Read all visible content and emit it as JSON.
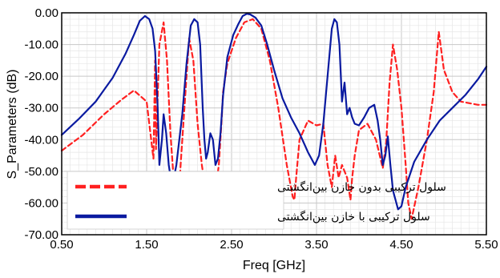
{
  "chart_data": {
    "type": "line",
    "xlabel": "Freq [GHz]",
    "ylabel": "S_Parameters (dB)",
    "xlim": [
      0.5,
      5.5
    ],
    "ylim": [
      -70,
      0
    ],
    "grid": true,
    "legend_placement": "bottom-left",
    "x_ticks": [
      "0.50",
      "1.50",
      "2.50",
      "3.50",
      "4.50",
      "5.50"
    ],
    "y_ticks": [
      "0.00",
      "-10.00",
      "-20.00",
      "-30.00",
      "-40.00",
      "-50.00",
      "-60.00",
      "-70.00"
    ],
    "series": [
      {
        "name": "سلول ترکیبی بدون خازن بین‌انگشتی",
        "color": "#ff2020",
        "style": "dashed",
        "x": [
          0.5,
          0.75,
          1.0,
          1.2,
          1.35,
          1.5,
          1.58,
          1.6,
          1.61,
          1.65,
          1.7,
          1.74,
          1.78,
          1.82,
          1.86,
          1.88,
          1.9,
          1.95,
          2.0,
          2.05,
          2.1,
          2.15,
          2.2,
          2.25,
          2.3,
          2.35,
          2.38,
          2.4,
          2.45,
          2.55,
          2.65,
          2.75,
          2.85,
          2.95,
          3.05,
          3.15,
          3.22,
          3.24,
          3.26,
          3.3,
          3.4,
          3.5,
          3.58,
          3.63,
          3.68,
          3.72,
          3.76,
          3.8,
          3.86,
          3.9,
          3.92,
          3.95,
          4.0,
          4.1,
          4.2,
          4.28,
          4.32,
          4.36,
          4.4,
          4.45,
          4.5,
          4.55,
          4.58,
          4.62,
          4.7,
          4.8,
          4.88,
          4.94,
          5.0,
          5.1,
          5.2,
          5.3,
          5.4,
          5.5
        ],
        "y": [
          -43.5,
          -38.5,
          -32.0,
          -27.5,
          -24.5,
          -28.0,
          -46.0,
          -15.0,
          -43.0,
          -10.0,
          -3.0,
          -15.0,
          -38.0,
          -53.0,
          -58.0,
          -58.0,
          -48.0,
          -28.0,
          -8.0,
          -15.0,
          -35.0,
          -48.0,
          -57.0,
          -60.0,
          -58.5,
          -48.0,
          -35.0,
          -25.0,
          -16.0,
          -8.0,
          -3.0,
          -2.0,
          -5.0,
          -15.0,
          -30.0,
          -48.0,
          -58.0,
          -59.0,
          -52.0,
          -40.0,
          -34.0,
          -35.5,
          -35.0,
          -48.0,
          -55.0,
          -45.0,
          -52.0,
          -48.0,
          -52.0,
          -59.0,
          -52.0,
          -45.0,
          -37.0,
          -35.0,
          -40.0,
          -49.0,
          -41.0,
          -22.0,
          -10.0,
          -18.0,
          -30.0,
          -48.0,
          -60.0,
          -65.0,
          -55.0,
          -40.0,
          -25.0,
          -6.0,
          -18.0,
          -25.0,
          -28.0,
          -28.5,
          -29.0,
          -29.0
        ]
      },
      {
        "name": "سلول ترکیبی با خازن بین‌انگشتی",
        "color": "#0a1aa0",
        "style": "solid",
        "x": [
          0.5,
          0.7,
          0.9,
          1.1,
          1.25,
          1.35,
          1.42,
          1.48,
          1.53,
          1.57,
          1.6,
          1.63,
          1.65,
          1.68,
          1.7,
          1.73,
          1.76,
          1.8,
          1.85,
          1.92,
          1.97,
          2.02,
          2.06,
          2.1,
          2.13,
          2.16,
          2.18,
          2.2,
          2.22,
          2.25,
          2.28,
          2.31,
          2.34,
          2.37,
          2.4,
          2.45,
          2.52,
          2.58,
          2.63,
          2.68,
          2.72,
          2.78,
          2.85,
          2.92,
          3.0,
          3.1,
          3.2,
          3.3,
          3.4,
          3.48,
          3.53,
          3.58,
          3.63,
          3.68,
          3.71,
          3.74,
          3.77,
          3.8,
          3.83,
          3.86,
          3.89,
          3.92,
          3.95,
          4.0,
          4.06,
          4.12,
          4.18,
          4.22,
          4.25,
          4.28,
          4.31,
          4.34,
          4.37,
          4.4,
          4.43,
          4.46,
          4.5,
          4.55,
          4.65,
          4.8,
          4.95,
          5.1,
          5.25,
          5.4,
          5.5
        ],
        "y": [
          -38.5,
          -33.5,
          -28.0,
          -20.5,
          -13.0,
          -7.0,
          -2.5,
          -1.0,
          -2.0,
          -5.0,
          -12.0,
          -30.0,
          -48.0,
          -40.0,
          -32.0,
          -38.0,
          -48.0,
          -55.0,
          -48.0,
          -32.0,
          -16.0,
          -4.0,
          -2.0,
          -3.0,
          -10.0,
          -30.0,
          -40.0,
          -46.0,
          -44.0,
          -38.0,
          -40.0,
          -48.0,
          -46.0,
          -38.0,
          -26.0,
          -14.0,
          -7.0,
          -3.5,
          -1.0,
          -0.3,
          -0.5,
          -1.5,
          -4.0,
          -10.0,
          -18.0,
          -27.0,
          -33.0,
          -38.0,
          -44.0,
          -48.0,
          -45.0,
          -35.0,
          -20.0,
          -5.0,
          -2.0,
          -3.0,
          -10.0,
          -28.0,
          -22.0,
          -32.0,
          -30.0,
          -33.0,
          -35.0,
          -35.5,
          -33.0,
          -30.0,
          -29.0,
          -34.0,
          -40.0,
          -48.0,
          -45.0,
          -39.0,
          -48.0,
          -56.0,
          -59.0,
          -62.0,
          -61.0,
          -55.0,
          -47.0,
          -40.0,
          -34.0,
          -30.0,
          -26.0,
          -21.0,
          -17.0
        ]
      }
    ]
  }
}
